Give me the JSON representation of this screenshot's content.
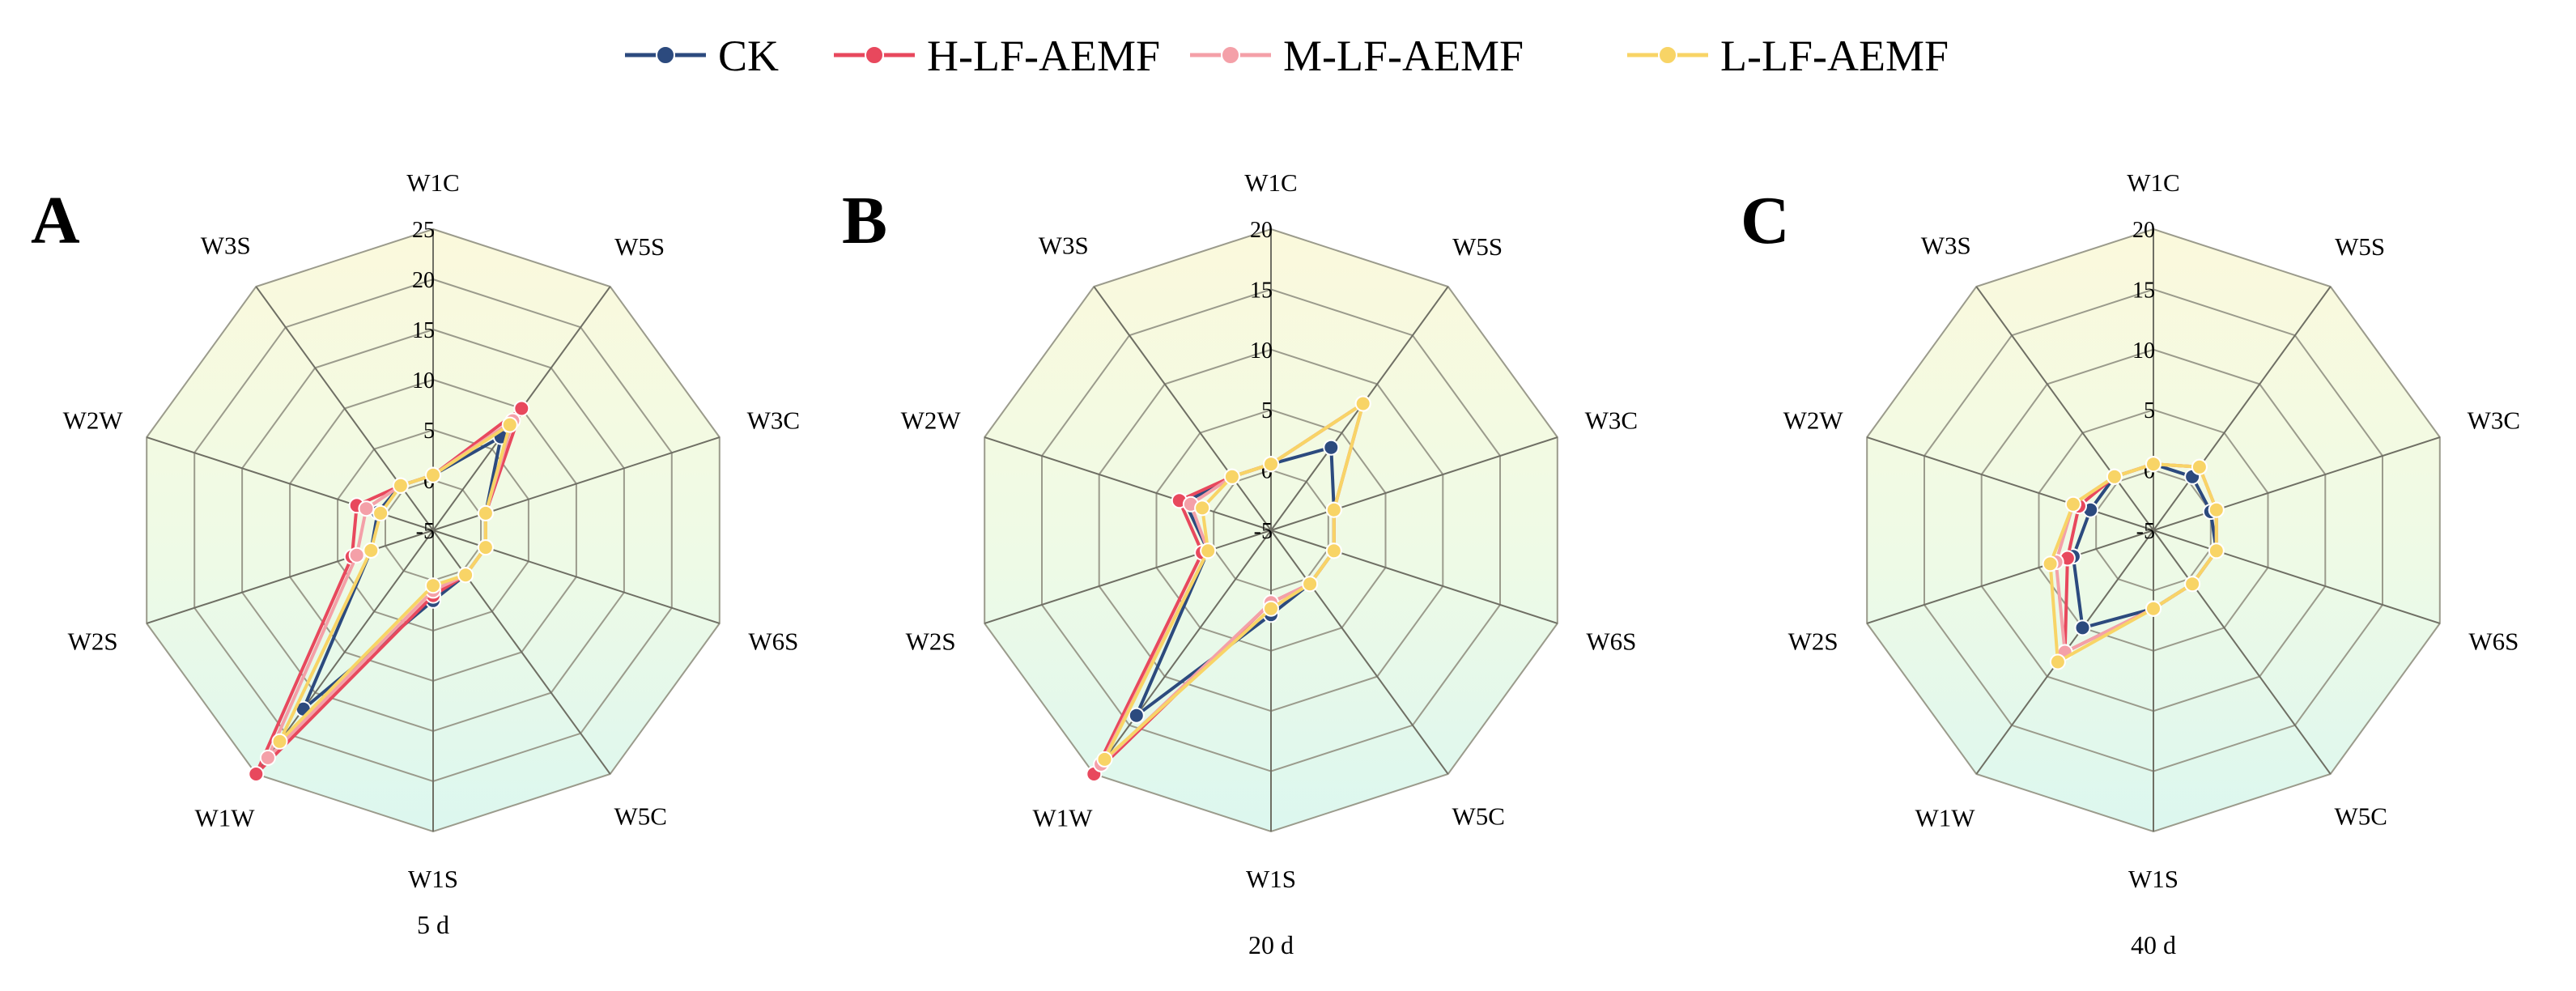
{
  "legend": [
    {
      "name": "CK",
      "color": "#2c4a7e"
    },
    {
      "name": "H-LF-AEMF",
      "color": "#e8485d"
    },
    {
      "name": "M-LF-AEMF",
      "color": "#f4a0a8"
    },
    {
      "name": "L-LF-AEMF",
      "color": "#f8d466"
    }
  ],
  "colors": {
    "grid": "#9b9b8c",
    "fill_top": "#fbf9dc",
    "fill_bottom": "#dcf7ef"
  },
  "chart_data": [
    {
      "type": "radar",
      "panel": "A",
      "caption": "5 d",
      "axes": [
        "W1C",
        "W5S",
        "W3C",
        "W6S",
        "W5C",
        "W1S",
        "W1W",
        "W2S",
        "W2W",
        "W3S"
      ],
      "rmin": -5,
      "rmax": 25,
      "ticks": [
        -5,
        0,
        5,
        10,
        15,
        20,
        25
      ],
      "series": [
        {
          "name": "CK",
          "values": [
            0.5,
            6.5,
            0.5,
            0.5,
            0.5,
            2.0,
            17.0,
            1.5,
            0.8,
            0.5
          ]
        },
        {
          "name": "H-LF-AEMF",
          "values": [
            0.5,
            10.0,
            0.5,
            0.5,
            0.5,
            1.5,
            25.0,
            3.5,
            3.0,
            0.5
          ]
        },
        {
          "name": "M-LF-AEMF",
          "values": [
            0.5,
            8.5,
            0.5,
            0.5,
            0.5,
            1.0,
            23.0,
            3.0,
            2.0,
            0.5
          ]
        },
        {
          "name": "L-LF-AEMF",
          "values": [
            0.5,
            8.0,
            0.5,
            0.5,
            0.5,
            0.5,
            21.0,
            1.5,
            0.5,
            0.5
          ]
        }
      ]
    },
    {
      "type": "radar",
      "panel": "B",
      "caption": "20 d",
      "axes": [
        "W1C",
        "W5S",
        "W3C",
        "W6S",
        "W5C",
        "W1S",
        "W1W",
        "W2S",
        "W2W",
        "W3S"
      ],
      "rmin": -5,
      "rmax": 20,
      "ticks": [
        -5,
        0,
        5,
        10,
        15,
        20
      ],
      "series": [
        {
          "name": "CK",
          "values": [
            0.5,
            3.5,
            0.5,
            0.5,
            0.5,
            2.0,
            14.0,
            0.5,
            2.5,
            0.5
          ]
        },
        {
          "name": "H-LF-AEMF",
          "values": [
            0.5,
            8.0,
            0.5,
            0.5,
            0.5,
            1.0,
            20.0,
            1.0,
            3.0,
            0.5
          ]
        },
        {
          "name": "M-LF-AEMF",
          "values": [
            0.5,
            8.0,
            0.5,
            0.5,
            0.5,
            1.0,
            19.0,
            0.5,
            2.0,
            0.5
          ]
        },
        {
          "name": "L-LF-AEMF",
          "values": [
            0.5,
            8.0,
            0.5,
            0.5,
            0.5,
            1.5,
            18.5,
            0.5,
            1.0,
            0.5
          ]
        }
      ]
    },
    {
      "type": "radar",
      "panel": "C",
      "caption": "40 d",
      "axes": [
        "W1C",
        "W5S",
        "W3C",
        "W6S",
        "W5C",
        "W1S",
        "W1W",
        "W2S",
        "W2W",
        "W3S"
      ],
      "rmin": -5,
      "rmax": 20,
      "ticks": [
        -5,
        0,
        5,
        10,
        15,
        20
      ],
      "series": [
        {
          "name": "CK",
          "values": [
            0.5,
            0.5,
            0.0,
            0.5,
            0.5,
            1.5,
            5.0,
            2.0,
            0.5,
            0.5
          ]
        },
        {
          "name": "H-LF-AEMF",
          "values": [
            0.5,
            1.5,
            0.5,
            0.5,
            0.5,
            1.5,
            7.5,
            2.5,
            1.5,
            0.5
          ]
        },
        {
          "name": "M-LF-AEMF",
          "values": [
            0.5,
            1.5,
            0.5,
            0.5,
            0.5,
            1.5,
            7.5,
            3.5,
            2.0,
            0.5
          ]
        },
        {
          "name": "L-LF-AEMF",
          "values": [
            0.5,
            1.5,
            0.5,
            0.5,
            0.5,
            1.5,
            8.5,
            4.0,
            2.0,
            0.5
          ]
        }
      ]
    }
  ]
}
